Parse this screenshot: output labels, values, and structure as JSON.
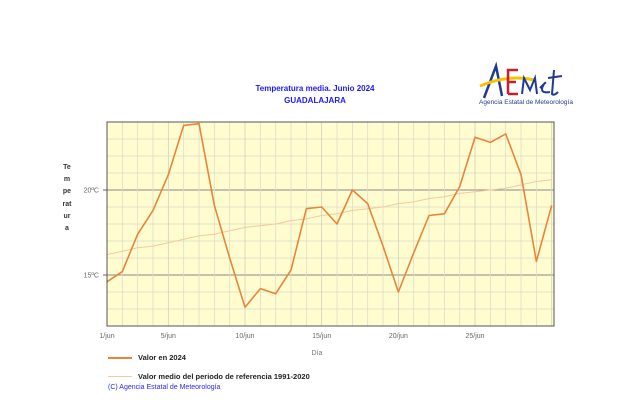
{
  "header": {
    "title": "Temperatura media. Junio 2024",
    "subtitle": "GUADALAJARA",
    "logo_text": "AEMet",
    "logo_subtitle": "Agencia Estatal de Meteorología"
  },
  "chart_data": {
    "type": "line",
    "title": "Temperatura media. Junio 2024",
    "subtitle": "GUADALAJARA",
    "xlabel": "Día",
    "ylabel": "Temperatura",
    "x": [
      1,
      2,
      3,
      4,
      5,
      6,
      7,
      8,
      9,
      10,
      11,
      12,
      13,
      14,
      15,
      16,
      17,
      18,
      19,
      20,
      21,
      22,
      23,
      24,
      25,
      26,
      27,
      28,
      29,
      30
    ],
    "xlim": [
      1,
      30
    ],
    "ylim": [
      12,
      24
    ],
    "x_ticks": [
      {
        "day": 1,
        "label": "1/jun"
      },
      {
        "day": 5,
        "label": "5/jun"
      },
      {
        "day": 10,
        "label": "10/jun"
      },
      {
        "day": 15,
        "label": "15/jun"
      },
      {
        "day": 20,
        "label": "20/jun"
      },
      {
        "day": 25,
        "label": "25/jun"
      }
    ],
    "y_ticks": [
      {
        "value": 15,
        "label": "15ºC"
      },
      {
        "value": 20,
        "label": "20ºC"
      }
    ],
    "grid": true,
    "legend_position": "bottom",
    "series": [
      {
        "name": "Valor en 2024",
        "color": "#e8853a",
        "values": [
          14.6,
          15.2,
          17.4,
          18.8,
          20.9,
          23.8,
          23.9,
          19.1,
          16.0,
          13.1,
          14.2,
          13.9,
          15.3,
          18.9,
          19.0,
          18.0,
          20.0,
          19.2,
          16.7,
          14.0,
          16.3,
          18.5,
          18.6,
          20.2,
          23.1,
          22.8,
          23.3,
          20.9,
          15.8,
          19.1
        ]
      },
      {
        "name": "Valor medio del periodo de referencia 1991-2020",
        "color": "#f5c9a0",
        "values": [
          16.2,
          16.4,
          16.6,
          16.7,
          16.9,
          17.1,
          17.3,
          17.4,
          17.6,
          17.8,
          17.9,
          18.0,
          18.2,
          18.3,
          18.5,
          18.6,
          18.8,
          18.9,
          19.0,
          19.2,
          19.3,
          19.5,
          19.6,
          19.8,
          19.9,
          20.0,
          20.1,
          20.3,
          20.5,
          20.6
        ]
      }
    ],
    "plot_background": "#fffdd0"
  },
  "footer": {
    "credit": "(C) Agencia Estatal de Meteorología"
  }
}
